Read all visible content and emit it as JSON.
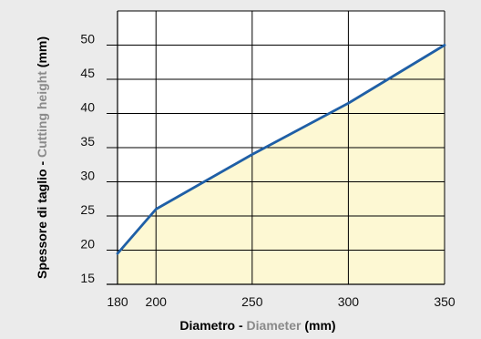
{
  "chart_data": {
    "type": "area",
    "x": [
      180,
      200,
      250,
      300,
      350
    ],
    "series": [
      {
        "values": [
          19.5,
          26,
          34,
          41.5,
          50
        ]
      }
    ],
    "xticks": [
      180,
      200,
      250,
      300,
      350
    ],
    "yticks": [
      15,
      20,
      25,
      30,
      35,
      40,
      45,
      50
    ],
    "xlim": [
      180,
      350
    ],
    "ylim": [
      15,
      55
    ],
    "grid": true,
    "xlabel": {
      "main": "Diametro - ",
      "alt": "Diameter",
      "unit": " (mm)"
    },
    "ylabel": {
      "main": "Spessore di taglio - ",
      "alt": "Cutting height",
      "unit": " (mm)"
    },
    "colors": {
      "line": "#1f5fa6",
      "fill": "#fdf8d3",
      "grid": "#000000",
      "label_alt": "#8a8a8a",
      "label_main": "#000000"
    }
  }
}
